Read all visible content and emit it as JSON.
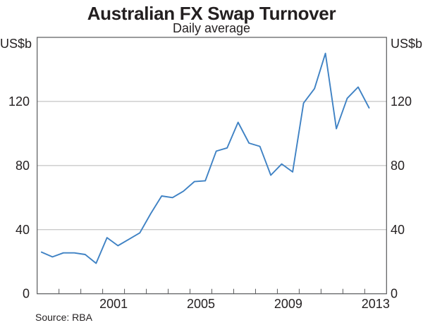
{
  "header": {
    "title": "Australian FX Swap Turnover",
    "subtitle": "Daily average"
  },
  "colors": {
    "line": "#3f82c4",
    "grid": "#b8b8b8",
    "frame": "#58595b",
    "text": "#231f20"
  },
  "chart_data": {
    "type": "line",
    "title": "Australian FX Swap Turnover",
    "subtitle": "Daily average",
    "unit": "US$b",
    "source": "Source: RBA",
    "ylim": [
      0,
      160
    ],
    "y_ticks": [
      0,
      40,
      80,
      120
    ],
    "y_gridlines": [
      40,
      80,
      120
    ],
    "x_range_years": [
      1998,
      2014
    ],
    "x_axis_label_years": [
      2001,
      2005,
      2009,
      2013
    ],
    "grid": "horizontal-only",
    "legend": "none",
    "series": [
      {
        "name": "FX swap turnover (daily average)",
        "x": [
          1998.2,
          1998.7,
          1999.2,
          1999.7,
          2000.2,
          2000.7,
          2001.2,
          2001.7,
          2002.2,
          2002.7,
          2003.2,
          2003.7,
          2004.2,
          2004.7,
          2005.2,
          2005.7,
          2006.2,
          2006.7,
          2007.2,
          2007.7,
          2008.2,
          2008.7,
          2009.2,
          2009.7,
          2010.2,
          2010.7,
          2011.2,
          2011.7,
          2012.2,
          2012.7,
          2013.2
        ],
        "values": [
          26,
          23,
          25.5,
          25.5,
          24.5,
          19,
          35,
          30,
          34,
          38,
          50,
          61,
          60,
          64,
          70,
          70.5,
          89,
          91,
          107,
          94,
          92,
          74,
          81,
          76,
          119,
          128,
          150,
          103,
          122,
          129,
          116
        ]
      }
    ]
  }
}
